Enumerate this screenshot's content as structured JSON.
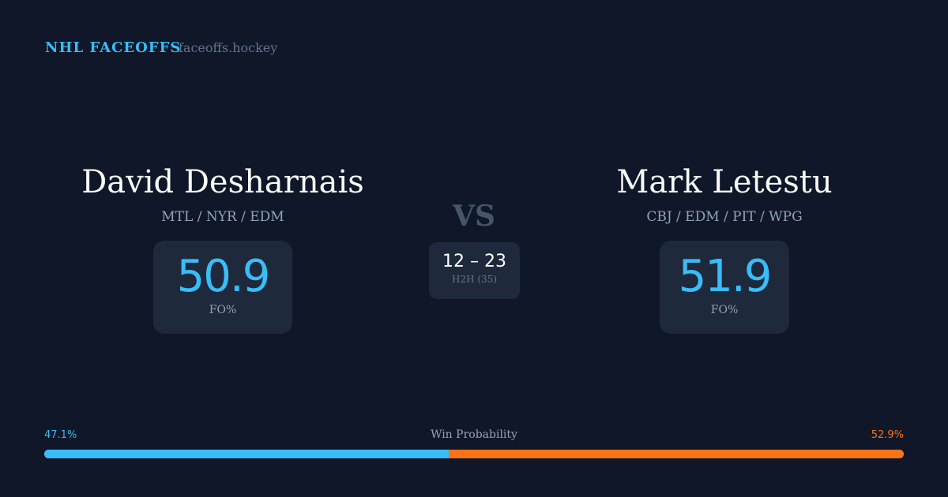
{
  "header": {
    "brand": "NHL FACEOFFS",
    "domain": "faceoffs.hockey"
  },
  "player1": {
    "name": "David Desharnais",
    "teams": "MTL / NYR / EDM",
    "fo_pct": "50.9",
    "fo_label": "FO%"
  },
  "player2": {
    "name": "Mark Letestu",
    "teams": "CBJ / EDM / PIT / WPG",
    "fo_pct": "51.9",
    "fo_label": "FO%"
  },
  "vs": "VS",
  "h2h": {
    "score": "12 – 23",
    "label": "H2H (35)"
  },
  "win_probability": {
    "label": "Win Probability",
    "left": "47.1%",
    "right": "52.9%",
    "left_value": 47.1,
    "colors": {
      "left": "#38bdf8",
      "right": "#f97316"
    }
  }
}
